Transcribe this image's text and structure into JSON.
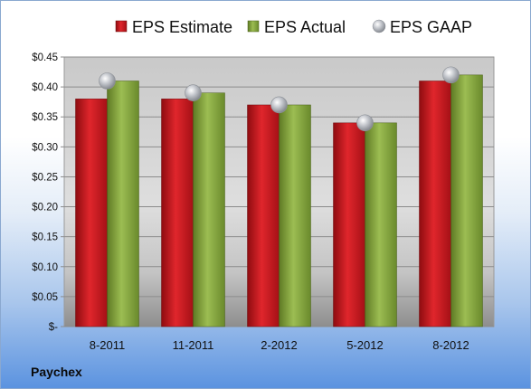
{
  "company": "Paychex",
  "colors": {
    "estimate": "#c8161d",
    "actual": "#7f9f3a",
    "gaap": "#b9bcc2"
  },
  "chart_data": {
    "type": "bar",
    "categories": [
      "8-2011",
      "11-2011",
      "2-2012",
      "5-2012",
      "8-2012"
    ],
    "series": [
      {
        "name": "EPS Estimate",
        "type": "bar",
        "values": [
          0.38,
          0.38,
          0.37,
          0.34,
          0.41
        ]
      },
      {
        "name": "EPS Actual",
        "type": "bar",
        "values": [
          0.41,
          0.39,
          0.37,
          0.34,
          0.42
        ]
      },
      {
        "name": "EPS GAAP",
        "type": "marker",
        "values": [
          0.41,
          0.39,
          0.37,
          0.34,
          0.42
        ]
      }
    ],
    "ylim": [
      0,
      0.45
    ],
    "yticks": [
      0,
      0.05,
      0.1,
      0.15,
      0.2,
      0.25,
      0.3,
      0.35,
      0.4,
      0.45
    ],
    "ytick_labels": [
      "$-",
      "$0.05",
      "$0.10",
      "$0.15",
      "$0.20",
      "$0.25",
      "$0.30",
      "$0.35",
      "$0.40",
      "$0.45"
    ],
    "grid": true,
    "legend_position": "top"
  }
}
